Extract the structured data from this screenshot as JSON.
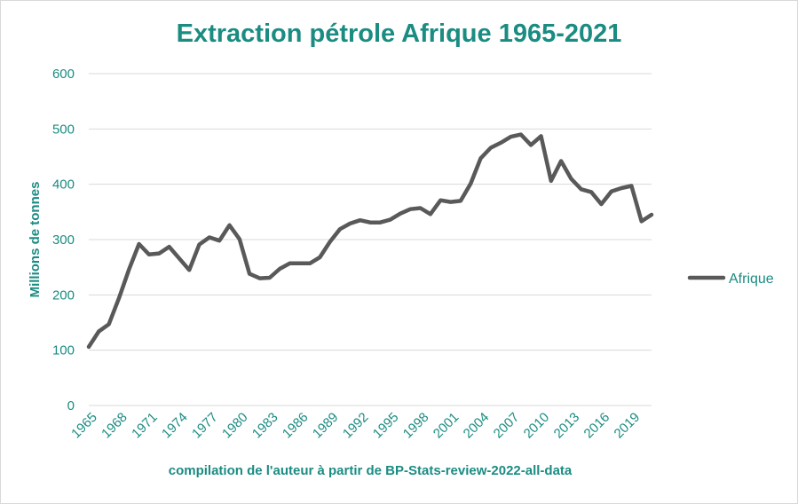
{
  "chart_data": {
    "type": "line",
    "title": "Extraction pétrole Afrique 1965-2021",
    "xlabel": "compilation de l'auteur à partir de BP-Stats-review-2022-all-data",
    "ylabel": "Millions de tonnes",
    "ylim": [
      0,
      600
    ],
    "yticks": [
      "0",
      "100",
      "200",
      "300",
      "400",
      "500",
      "600"
    ],
    "xticks": [
      "1965",
      "1968",
      "1971",
      "1974",
      "1977",
      "1980",
      "1983",
      "1986",
      "1989",
      "1992",
      "1995",
      "1998",
      "2001",
      "2004",
      "2007",
      "2010",
      "2013",
      "2016",
      "2019"
    ],
    "grid": true,
    "legend_position": "right",
    "x": [
      1965,
      1966,
      1967,
      1968,
      1969,
      1970,
      1971,
      1972,
      1973,
      1974,
      1975,
      1976,
      1977,
      1978,
      1979,
      1980,
      1981,
      1982,
      1983,
      1984,
      1985,
      1986,
      1987,
      1988,
      1989,
      1990,
      1991,
      1992,
      1993,
      1994,
      1995,
      1996,
      1997,
      1998,
      1999,
      2000,
      2001,
      2002,
      2003,
      2004,
      2005,
      2006,
      2007,
      2008,
      2009,
      2010,
      2011,
      2012,
      2013,
      2014,
      2015,
      2016,
      2017,
      2018,
      2019,
      2020,
      2021
    ],
    "series": [
      {
        "name": "Afrique",
        "color": "#595959",
        "values": [
          106,
          134,
          147,
          194,
          246,
          292,
          273,
          275,
          287,
          266,
          245,
          291,
          304,
          298,
          326,
          301,
          238,
          230,
          231,
          247,
          257,
          257,
          257,
          268,
          296,
          319,
          329,
          335,
          331,
          331,
          336,
          347,
          355,
          357,
          346,
          371,
          368,
          370,
          401,
          447,
          466,
          475,
          486,
          490,
          471,
          487,
          406,
          442,
          410,
          391,
          386,
          364,
          387,
          393,
          397,
          333,
          345
        ]
      }
    ],
    "legend": [
      {
        "label": "Afrique",
        "color": "#595959"
      }
    ]
  }
}
